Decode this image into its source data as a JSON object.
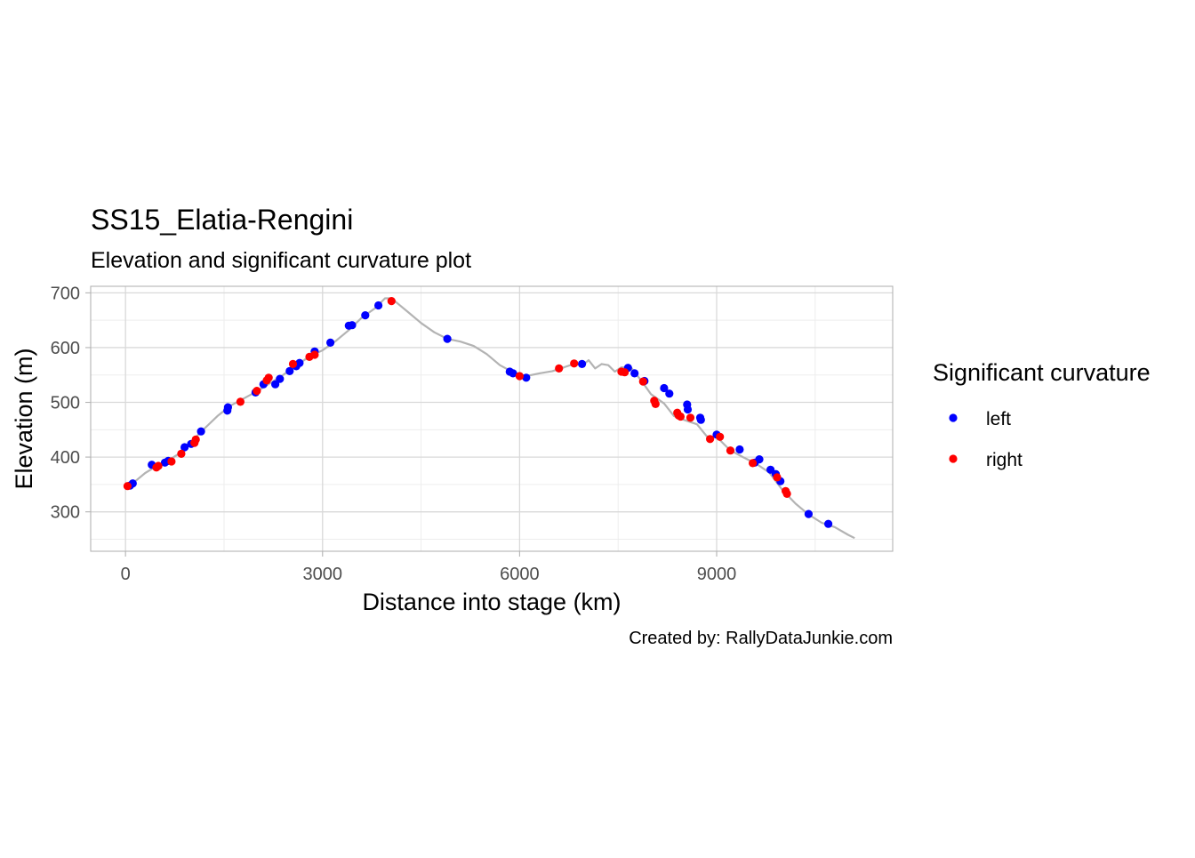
{
  "chart_data": {
    "type": "scatter",
    "title": "SS15_Elatia-Rengini",
    "subtitle": "Elevation and significant curvature plot",
    "xlabel": "Distance into stage (km)",
    "ylabel": "Elevation (m)",
    "caption": "Created by: RallyDataJunkie.com",
    "xlim": [
      -530,
      11680
    ],
    "ylim": [
      228,
      712
    ],
    "x_ticks": [
      0,
      3000,
      6000,
      9000
    ],
    "x_tick_labels": [
      "0",
      "3000",
      "6000",
      "9000"
    ],
    "y_ticks": [
      300,
      400,
      500,
      600,
      700
    ],
    "y_tick_labels": [
      "300",
      "400",
      "500",
      "600",
      "700"
    ],
    "grid": true,
    "legend": {
      "title": "Significant curvature",
      "position": "right",
      "entries": [
        {
          "label": "left",
          "color": "#0000FF"
        },
        {
          "label": "right",
          "color": "#FF0000"
        }
      ]
    },
    "line_color": "#B3B3B3",
    "elevation_profile": {
      "name": "elevation",
      "x": [
        0,
        150,
        300,
        450,
        500,
        650,
        800,
        900,
        1000,
        1200,
        1400,
        1600,
        1800,
        2000,
        2200,
        2400,
        2600,
        2800,
        3000,
        3200,
        3400,
        3600,
        3800,
        3950,
        4050,
        4150,
        4300,
        4500,
        4700,
        4900,
        5100,
        5300,
        5500,
        5700,
        5900,
        6100,
        6300,
        6500,
        6700,
        6850,
        6950,
        7050,
        7150,
        7250,
        7350,
        7450,
        7550,
        7700,
        7850,
        8000,
        8200,
        8350,
        8500,
        8700,
        8850,
        9000,
        9200,
        9400,
        9600,
        9800,
        10000,
        10200,
        10400,
        10600,
        10800,
        11000,
        11100
      ],
      "y": [
        348,
        356,
        371,
        382,
        384,
        394,
        405,
        418,
        428,
        452,
        475,
        494,
        507,
        520,
        535,
        550,
        567,
        584,
        595,
        612,
        632,
        655,
        672,
        690,
        690,
        680,
        665,
        645,
        628,
        616,
        611,
        603,
        588,
        568,
        555,
        548,
        553,
        557,
        565,
        571,
        567,
        577,
        562,
        570,
        568,
        556,
        564,
        563,
        540,
        515,
        498,
        475,
        468,
        460,
        438,
        437,
        413,
        400,
        388,
        372,
        340,
        315,
        295,
        280,
        272,
        258,
        252
      ]
    },
    "series": [
      {
        "name": "left",
        "color": "#0000FF",
        "x": [
          70,
          110,
          400,
          600,
          650,
          900,
          1000,
          1150,
          1550,
          1560,
          1980,
          2100,
          2280,
          2350,
          2500,
          2600,
          2650,
          2880,
          3120,
          3400,
          3450,
          3650,
          3850,
          4900,
          5850,
          5900,
          6100,
          6950,
          7650,
          7750,
          7900,
          8200,
          8280,
          8550,
          8560,
          8750,
          8760,
          9000,
          9350,
          9580,
          9650,
          9820,
          9900,
          9970,
          10400,
          10700
        ],
        "y": [
          348,
          352,
          386,
          390,
          393,
          418,
          424,
          447,
          485,
          491,
          518,
          533,
          533,
          543,
          557,
          566,
          572,
          593,
          609,
          640,
          641,
          659,
          677,
          616,
          556,
          553,
          545,
          570,
          563,
          553,
          539,
          526,
          516,
          496,
          487,
          472,
          468,
          441,
          414,
          390,
          396,
          377,
          369,
          356,
          296,
          278
        ]
      },
      {
        "name": "right",
        "color": "#FF0000",
        "x": [
          30,
          470,
          500,
          700,
          850,
          1050,
          1070,
          1750,
          2000,
          2150,
          2180,
          2550,
          2800,
          2880,
          4050,
          6000,
          6600,
          6830,
          7550,
          7600,
          7880,
          8050,
          8070,
          8400,
          8420,
          8450,
          8600,
          8900,
          9050,
          9210,
          9550,
          9920,
          10050,
          10070
        ],
        "y": [
          347,
          381,
          384,
          392,
          406,
          426,
          432,
          501,
          521,
          540,
          545,
          570,
          583,
          587,
          685,
          548,
          562,
          571,
          556,
          555,
          538,
          503,
          497,
          481,
          476,
          474,
          472,
          433,
          437,
          412,
          389,
          363,
          338,
          333
        ]
      }
    ]
  }
}
